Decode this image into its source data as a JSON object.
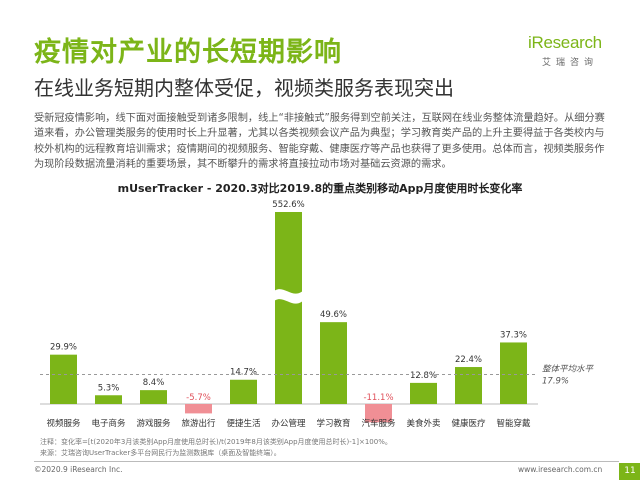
{
  "header": {
    "title": "疫情对产业的长短期影响",
    "subtitle": "在线业务短期内整体受促，视频类服务表现突出"
  },
  "logo": {
    "main": "iResearch",
    "sub": "艾瑞咨询"
  },
  "body_text": "受新冠疫情影响，线下面对面接触受到诸多限制，线上“非接触式”服务得到空前关注，互联网在线业务整体流量趋好。从细分赛道来看，办公管理类服务的使用时长上升显著，尤其以各类视频会议产品为典型；学习教育类产品的上升主要得益于各类校内与校外机构的远程教育培训需求；疫情期间的视频服务、智能穿戴、健康医疗等产品也获得了更多使用。总体而言，视频类服务作为现阶段数据流量消耗的重要场景，其不断攀升的需求将直接拉动市场对基础云资源的需求。",
  "notes": {
    "formula": "注释：变化率=[t(2020年3月该类别App月度使用总时长)/t(2019年8月该类别App月度使用总时长)-1]×100%。",
    "source": "来源：艾瑞咨询UserTracker多平台网民行为监测数据库（桌面及智能终端）。"
  },
  "footer": {
    "copyright": "©2020.9 iResearch Inc.",
    "url": "www.iresearch.com.cn",
    "page": "11"
  },
  "colors": {
    "accent": "#7cb518",
    "negative": "#f08f95",
    "avg_line": "#999999"
  },
  "chart_data": {
    "type": "bar",
    "title": "mUserTracker - 2020.3对比2019.8的重点类别移动App月度使用时长变化率",
    "categories": [
      "视频服务",
      "电子商务",
      "游戏服务",
      "旅游出行",
      "便捷生活",
      "办公管理",
      "学习教育",
      "汽车服务",
      "美食外卖",
      "健康医疗",
      "智能穿戴"
    ],
    "values": [
      29.9,
      5.3,
      8.4,
      -5.7,
      14.7,
      552.6,
      49.6,
      -11.1,
      12.8,
      22.4,
      37.3
    ],
    "value_labels": [
      "29.9%",
      "5.3%",
      "8.4%",
      "-5.7%",
      "14.7%",
      "552.6%",
      "49.6%",
      "-11.1%",
      "12.8%",
      "22.4%",
      "37.3%"
    ],
    "unit": "%",
    "axis_break": true,
    "reference_line": {
      "label": "整体平均水平",
      "value_label": "17.9%",
      "value": 17.9
    },
    "xlabel": "",
    "ylabel": "",
    "grid": false,
    "legend": "none"
  }
}
